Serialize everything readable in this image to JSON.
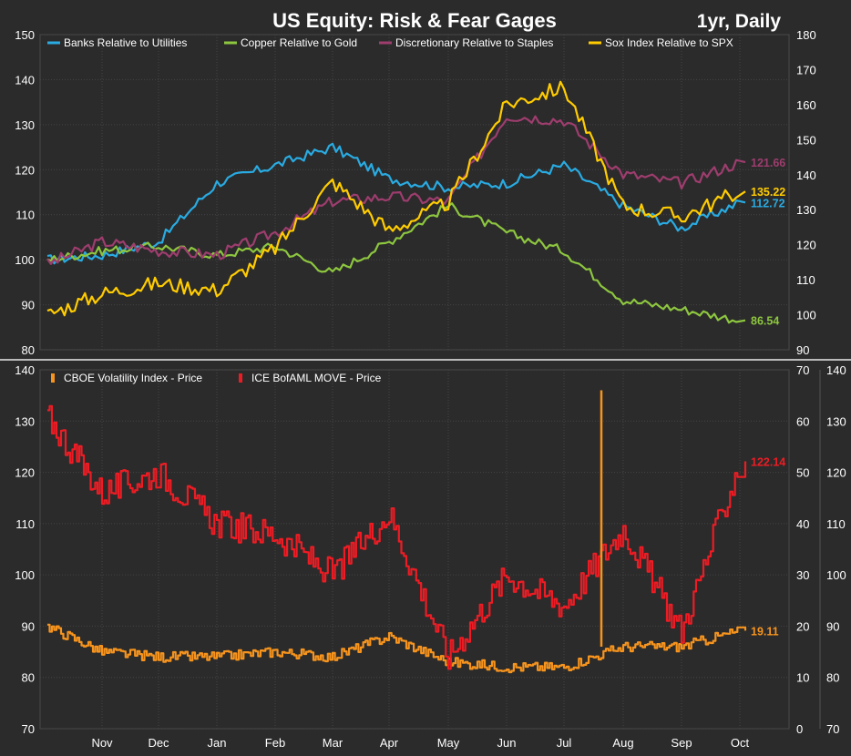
{
  "title": "US Equity: Risk & Fear Gages",
  "period_label": "1yr, Daily",
  "x_axis": {
    "ticks": [
      "Nov",
      "Dec",
      "Jan",
      "Feb",
      "Mar",
      "Apr",
      "May",
      "Jun",
      "Jul",
      "Aug",
      "Sep",
      "Oct"
    ]
  },
  "chart_data": [
    {
      "type": "line",
      "title": "US Equity: Risk & Fear Gages",
      "left_axis": {
        "ylim": [
          80,
          150
        ],
        "ticks": [
          80,
          90,
          100,
          110,
          120,
          130,
          140,
          150
        ]
      },
      "right_axis": {
        "ylim": [
          90,
          180
        ],
        "ticks": [
          90,
          100,
          110,
          120,
          130,
          140,
          150,
          160,
          170,
          180
        ]
      },
      "x": [
        "Oct",
        "Nov",
        "Dec",
        "Jan",
        "Feb",
        "Mar",
        "Apr",
        "May",
        "Jun",
        "Jul",
        "Aug",
        "Sep",
        "Oct"
      ],
      "legend_position": "top-left",
      "grid": true,
      "series": [
        {
          "name": "Banks Relative to Utilities",
          "axis": "left",
          "color": "#29abe2",
          "values": [
            100,
            101,
            104,
            117,
            121,
            125,
            118,
            116,
            117,
            121,
            112,
            107,
            112.72
          ],
          "last_label": "112.72"
        },
        {
          "name": "Copper Relative to Gold",
          "axis": "left",
          "color": "#8dc63f",
          "values": [
            100,
            102,
            103,
            101,
            103,
            97,
            104,
            112,
            106,
            102,
            91,
            89,
            86.54
          ],
          "last_label": "86.54"
        },
        {
          "name": "Discretionary Relative to Staples",
          "axis": "left",
          "color": "#9e3d6e",
          "values": [
            99,
            104,
            102,
            101,
            106,
            113,
            114,
            113,
            132,
            131,
            119,
            117,
            121.66
          ],
          "last_label": "121.66"
        },
        {
          "name": "Sox Index Relative to SPX",
          "axis": "right",
          "color": "#ffcc00",
          "values": [
            100,
            106,
            109,
            107,
            119,
            138,
            124,
            132,
            160,
            165,
            131,
            128,
            135.22
          ],
          "last_label": "135.22"
        }
      ]
    },
    {
      "type": "line",
      "left_axis": {
        "ylim": [
          70,
          140
        ],
        "ticks": [
          70,
          80,
          90,
          100,
          110,
          120,
          130,
          140
        ]
      },
      "right_axis_inner": {
        "ylim": [
          0,
          70
        ],
        "ticks": [
          0,
          10,
          20,
          30,
          40,
          50,
          60,
          70
        ]
      },
      "right_axis_outer": {
        "ylim": [
          70,
          140
        ],
        "ticks": [
          70,
          80,
          90,
          100,
          110,
          120,
          130,
          140
        ]
      },
      "x": [
        "Oct",
        "Nov",
        "Dec",
        "Jan",
        "Feb",
        "Mar",
        "Apr",
        "May",
        "Jun",
        "Jul",
        "Aug",
        "Sep",
        "Oct"
      ],
      "legend_position": "top-left",
      "grid": true,
      "series": [
        {
          "name": "CBOE Volatility Index - Price",
          "axis": "right",
          "color": "#f7941d",
          "values": [
            20,
            15,
            14,
            14,
            15,
            14,
            18,
            13,
            12,
            12,
            16,
            16,
            19.11
          ],
          "spikes": [
            {
              "month_index": 9.6,
              "value": 66
            }
          ],
          "last_label": "19.11"
        },
        {
          "name": "ICE BofAML MOVE - Price",
          "axis": "left",
          "color": "#ed1c24",
          "values": [
            131,
            116,
            120,
            110,
            108,
            100,
            112,
            84,
            100,
            94,
            109,
            89,
            122.14
          ],
          "last_label": "122.14"
        }
      ]
    }
  ]
}
